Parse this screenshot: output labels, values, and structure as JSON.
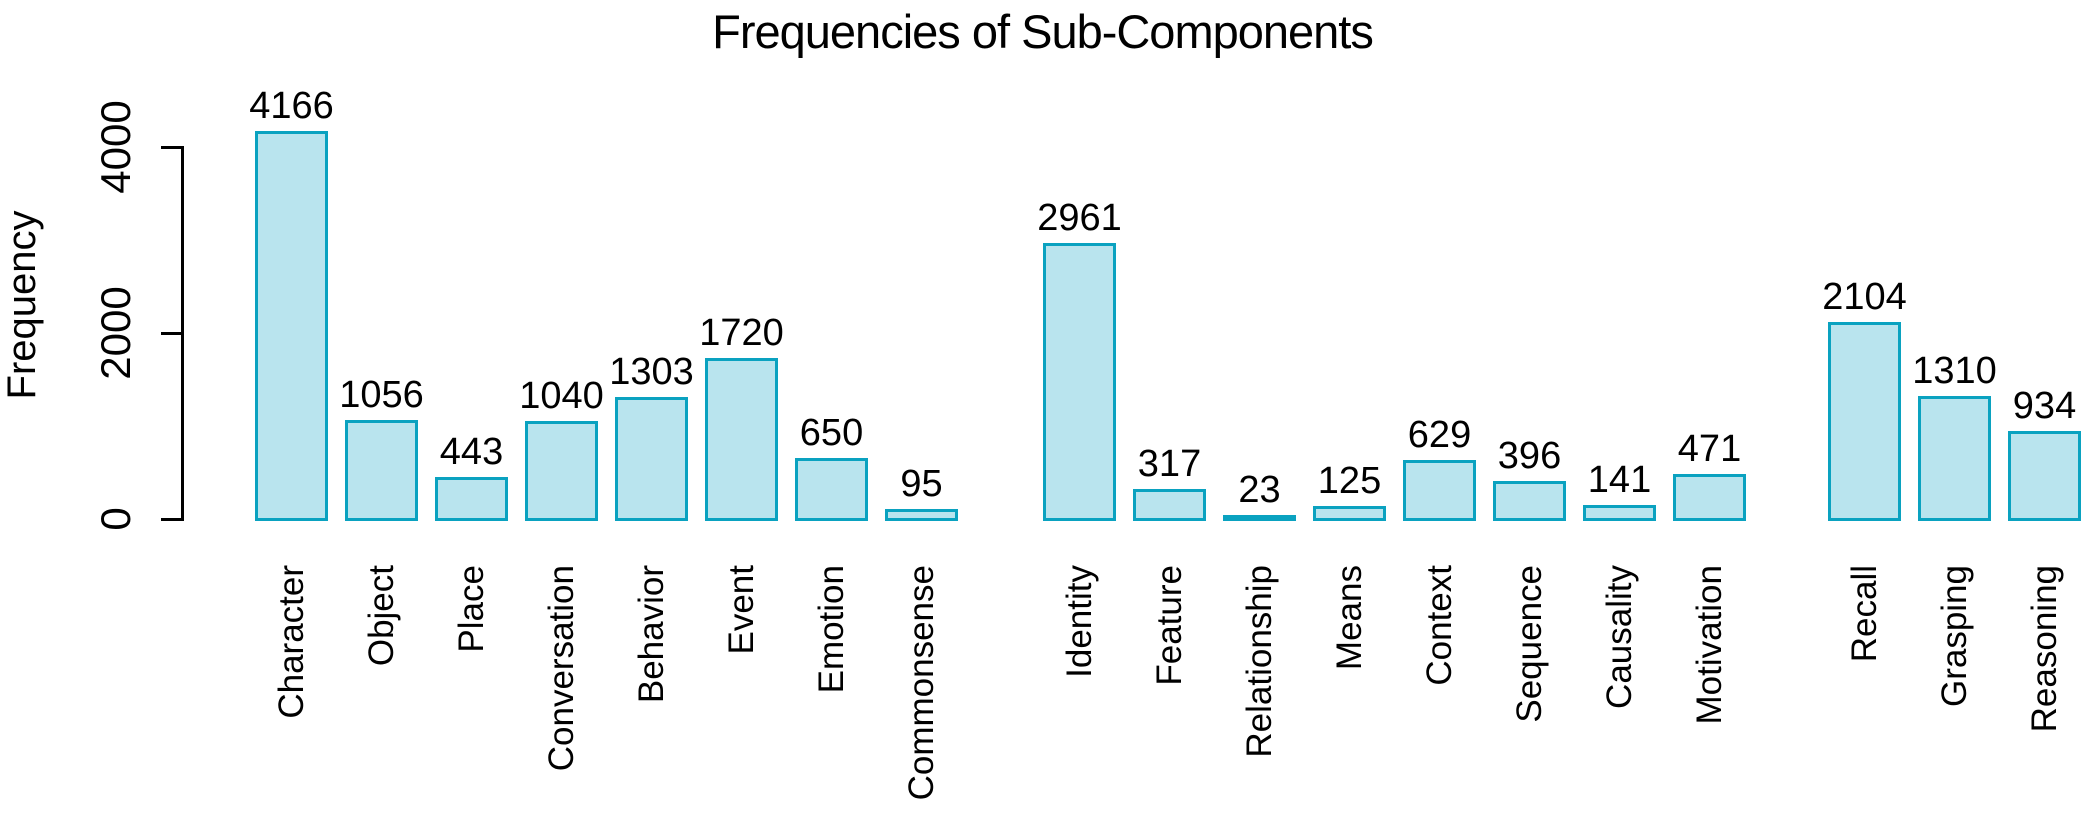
{
  "chart_data": {
    "type": "bar",
    "title": "Frequencies of Sub-Components",
    "xlabel": "",
    "ylabel": "Frequency",
    "ylim": [
      0,
      4000
    ],
    "yticks": [
      0,
      2000,
      4000
    ],
    "grid": false,
    "legend": null,
    "bar_value_labels_shown": true,
    "x_tick_label_rotation_deg": 90,
    "groups": [
      {
        "name": "group-1",
        "categories": [
          "Character",
          "Object",
          "Place",
          "Conversation",
          "Behavior",
          "Event",
          "Emotion",
          "Commonsense"
        ],
        "values": [
          4166,
          1056,
          443,
          1040,
          1303,
          1720,
          650,
          95
        ]
      },
      {
        "name": "group-2",
        "categories": [
          "Identity",
          "Feature",
          "Relationship",
          "Means",
          "Context",
          "Sequence",
          "Causality",
          "Motivation"
        ],
        "values": [
          2961,
          317,
          23,
          125,
          629,
          396,
          141,
          471
        ]
      },
      {
        "name": "group-3",
        "categories": [
          "Recall",
          "Grasping",
          "Reasoning"
        ],
        "values": [
          2104,
          1310,
          934
        ]
      }
    ],
    "colors": {
      "bar_fill": "#b9e4ee",
      "bar_border": "#0aa2c0",
      "axis": "#000000",
      "text": "#000000",
      "background": "#ffffff"
    }
  }
}
